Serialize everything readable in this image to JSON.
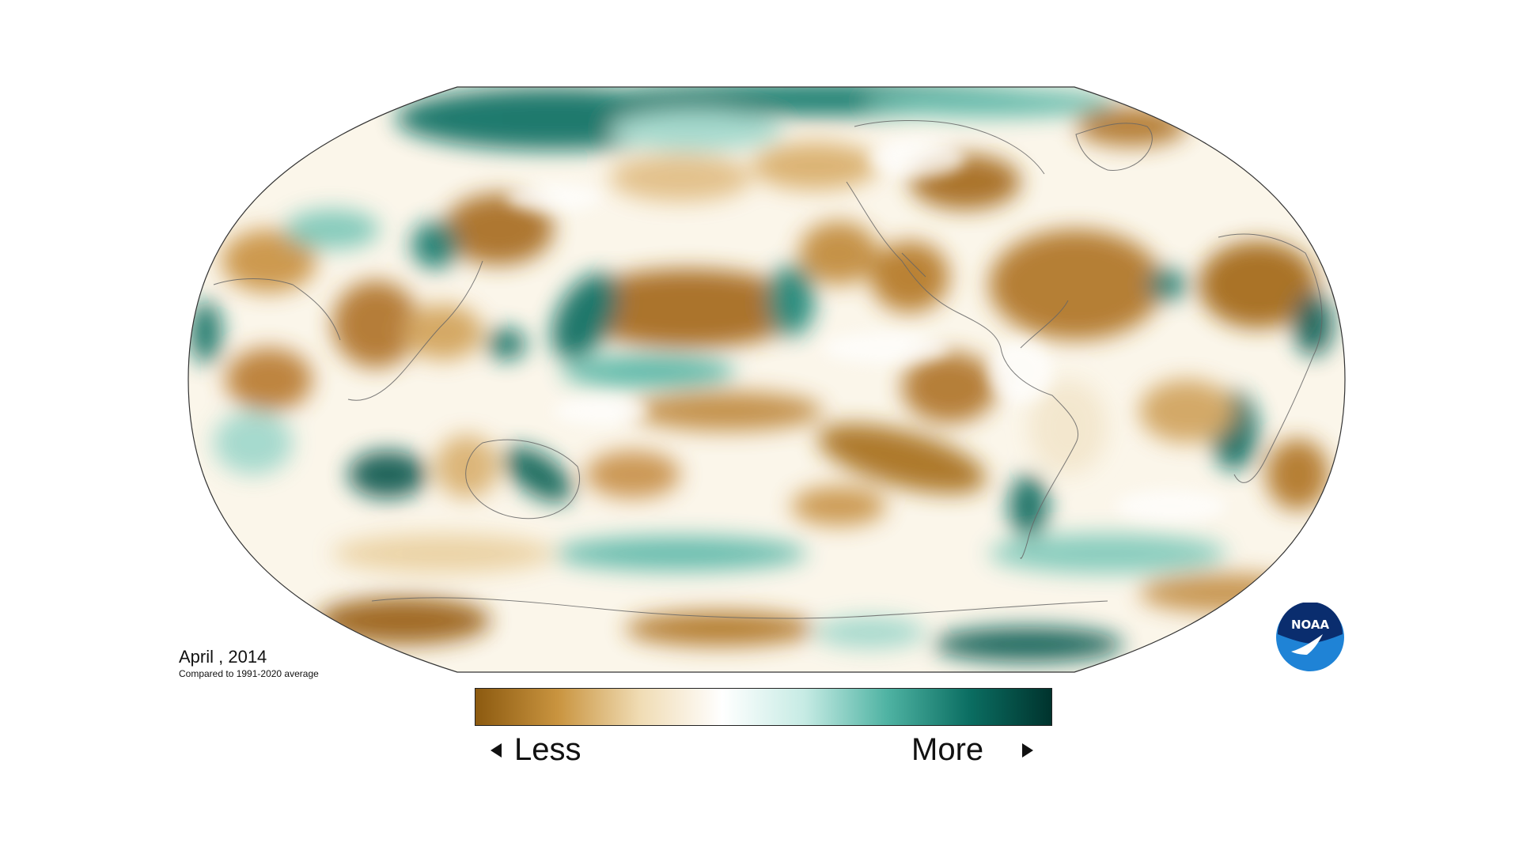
{
  "map": {
    "caption_date": "April , 2014",
    "caption_subtitle": "Compared to 1991-2020 average",
    "projection": "Robinson (Pacific-centered)",
    "color_scale": {
      "low_color": "#8c5a10",
      "mid_color": "#ffffff",
      "high_color": "#00423b"
    }
  },
  "legend": {
    "less_label": "Less",
    "more_label": "More",
    "colors": [
      "#8c5a10",
      "#c9943f",
      "#f0dcb4",
      "#ffffff",
      "#c6ebe4",
      "#4fb3a3",
      "#0b6e62",
      "#00332d"
    ]
  },
  "logo": {
    "text": "NOAA",
    "primary_color": "#0a2d6e",
    "secondary_color": "#1f83d6"
  }
}
